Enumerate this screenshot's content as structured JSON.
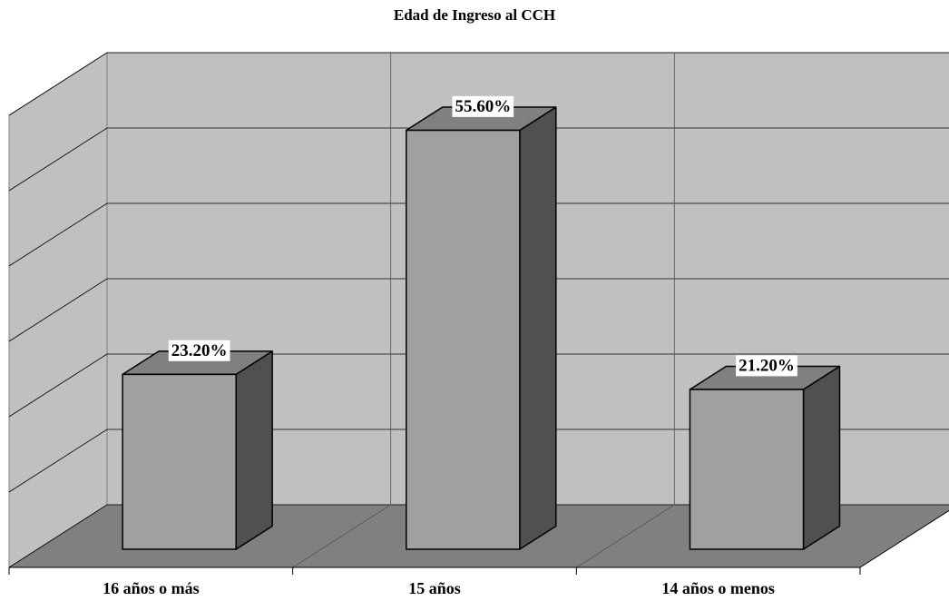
{
  "chart_data": {
    "type": "bar3d",
    "title": "Edad de Ingreso al CCH",
    "categories": [
      "16 años o más",
      "15 años",
      "14 años o menos"
    ],
    "values": [
      23.2,
      55.6,
      21.2
    ],
    "value_labels": [
      "23.20%",
      "55.60%",
      "21.20%"
    ],
    "ylim": [
      0,
      60
    ],
    "yticks": [
      0,
      10,
      20,
      30,
      40,
      50,
      60
    ],
    "grid": true
  }
}
